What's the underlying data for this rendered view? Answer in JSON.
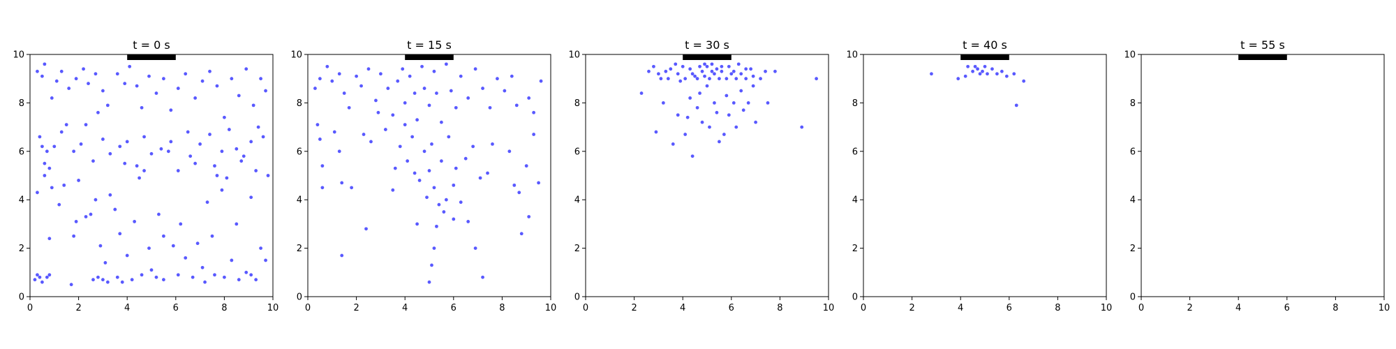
{
  "chart_data": [
    {
      "type": "scatter",
      "title": "t = 0 s",
      "xlim": [
        0,
        10
      ],
      "ylim": [
        0,
        10
      ],
      "xticks": [
        0,
        2,
        4,
        6,
        8,
        10
      ],
      "yticks": [
        0,
        2,
        4,
        6,
        8,
        10
      ],
      "grid": false,
      "exit_bar": {
        "x": [
          4,
          6
        ],
        "y": 10
      },
      "points": [
        [
          0.2,
          0.7
        ],
        [
          0.3,
          0.9
        ],
        [
          0.4,
          0.8
        ],
        [
          0.5,
          0.6
        ],
        [
          0.7,
          0.8
        ],
        [
          0.8,
          0.9
        ],
        [
          1.7,
          0.5
        ],
        [
          2.6,
          0.7
        ],
        [
          2.8,
          0.8
        ],
        [
          3.0,
          0.7
        ],
        [
          3.2,
          0.6
        ],
        [
          3.6,
          0.8
        ],
        [
          3.8,
          0.6
        ],
        [
          4.2,
          0.7
        ],
        [
          4.6,
          0.9
        ],
        [
          5.2,
          0.8
        ],
        [
          5.5,
          0.7
        ],
        [
          6.1,
          0.9
        ],
        [
          6.7,
          0.8
        ],
        [
          7.2,
          0.6
        ],
        [
          7.6,
          0.9
        ],
        [
          8.0,
          0.8
        ],
        [
          8.6,
          0.7
        ],
        [
          9.1,
          0.9
        ],
        [
          9.3,
          0.7
        ],
        [
          0.3,
          4.3
        ],
        [
          0.6,
          5.5
        ],
        [
          0.7,
          6.0
        ],
        [
          0.8,
          2.4
        ],
        [
          0.9,
          4.5
        ],
        [
          1.2,
          3.8
        ],
        [
          1.4,
          4.6
        ],
        [
          1.8,
          2.5
        ],
        [
          1.9,
          3.1
        ],
        [
          2.0,
          4.8
        ],
        [
          2.3,
          3.3
        ],
        [
          2.5,
          3.4
        ],
        [
          2.7,
          4.0
        ],
        [
          2.9,
          2.1
        ],
        [
          3.1,
          1.4
        ],
        [
          3.3,
          4.2
        ],
        [
          3.5,
          3.6
        ],
        [
          3.7,
          2.6
        ],
        [
          3.9,
          5.5
        ],
        [
          4.0,
          1.7
        ],
        [
          4.3,
          3.1
        ],
        [
          4.5,
          4.9
        ],
        [
          4.7,
          5.2
        ],
        [
          4.9,
          2.0
        ],
        [
          5.0,
          1.1
        ],
        [
          5.3,
          3.4
        ],
        [
          5.5,
          2.5
        ],
        [
          5.7,
          6.0
        ],
        [
          5.9,
          2.1
        ],
        [
          6.2,
          3.0
        ],
        [
          6.4,
          1.6
        ],
        [
          6.6,
          5.8
        ],
        [
          6.9,
          2.2
        ],
        [
          7.1,
          1.2
        ],
        [
          7.3,
          3.9
        ],
        [
          7.5,
          2.5
        ],
        [
          7.7,
          5.0
        ],
        [
          7.9,
          4.4
        ],
        [
          8.1,
          4.9
        ],
        [
          8.3,
          1.5
        ],
        [
          8.5,
          3.0
        ],
        [
          8.7,
          5.6
        ],
        [
          8.9,
          1.0
        ],
        [
          9.1,
          4.1
        ],
        [
          9.3,
          5.2
        ],
        [
          9.5,
          2.0
        ],
        [
          9.7,
          1.5
        ],
        [
          0.4,
          6.6
        ],
        [
          0.5,
          6.2
        ],
        [
          0.6,
          5.0
        ],
        [
          0.8,
          5.3
        ],
        [
          1.0,
          6.2
        ],
        [
          1.3,
          6.8
        ],
        [
          1.5,
          7.1
        ],
        [
          1.8,
          6.0
        ],
        [
          2.1,
          6.3
        ],
        [
          2.3,
          7.1
        ],
        [
          2.6,
          5.6
        ],
        [
          2.8,
          7.6
        ],
        [
          3.0,
          6.5
        ],
        [
          3.3,
          5.9
        ],
        [
          3.7,
          6.2
        ],
        [
          4.0,
          6.4
        ],
        [
          4.4,
          5.4
        ],
        [
          4.7,
          6.6
        ],
        [
          5.0,
          5.9
        ],
        [
          5.4,
          6.1
        ],
        [
          5.8,
          6.4
        ],
        [
          6.1,
          5.2
        ],
        [
          6.5,
          6.8
        ],
        [
          6.8,
          5.5
        ],
        [
          7.0,
          6.3
        ],
        [
          7.4,
          6.7
        ],
        [
          7.6,
          5.4
        ],
        [
          7.9,
          6.0
        ],
        [
          8.2,
          6.9
        ],
        [
          8.5,
          6.1
        ],
        [
          8.8,
          5.8
        ],
        [
          9.1,
          6.4
        ],
        [
          9.4,
          7.0
        ],
        [
          9.6,
          6.6
        ],
        [
          9.8,
          5.0
        ],
        [
          0.3,
          9.3
        ],
        [
          0.5,
          9.1
        ],
        [
          0.6,
          9.6
        ],
        [
          0.9,
          8.2
        ],
        [
          1.1,
          8.9
        ],
        [
          1.3,
          9.3
        ],
        [
          1.6,
          8.6
        ],
        [
          1.9,
          9.0
        ],
        [
          2.2,
          9.4
        ],
        [
          2.4,
          8.8
        ],
        [
          2.7,
          9.2
        ],
        [
          3.0,
          8.5
        ],
        [
          3.2,
          7.9
        ],
        [
          3.6,
          9.2
        ],
        [
          3.9,
          8.8
        ],
        [
          4.1,
          9.5
        ],
        [
          4.4,
          8.7
        ],
        [
          4.6,
          7.8
        ],
        [
          4.9,
          9.1
        ],
        [
          5.2,
          8.4
        ],
        [
          5.5,
          9.0
        ],
        [
          5.8,
          7.7
        ],
        [
          6.1,
          8.6
        ],
        [
          6.4,
          9.2
        ],
        [
          6.8,
          8.2
        ],
        [
          7.1,
          8.9
        ],
        [
          7.4,
          9.3
        ],
        [
          7.7,
          8.7
        ],
        [
          8.0,
          7.4
        ],
        [
          8.3,
          9.0
        ],
        [
          8.6,
          8.3
        ],
        [
          8.9,
          9.4
        ],
        [
          9.2,
          7.9
        ],
        [
          9.5,
          9.0
        ],
        [
          9.7,
          8.5
        ]
      ]
    },
    {
      "type": "scatter",
      "title": "t = 15 s",
      "xlim": [
        0,
        10
      ],
      "ylim": [
        0,
        10
      ],
      "xticks": [
        0,
        2,
        4,
        6,
        8,
        10
      ],
      "yticks": [
        0,
        2,
        4,
        6,
        8,
        10
      ],
      "grid": false,
      "exit_bar": {
        "x": [
          4,
          6
        ],
        "y": 10
      },
      "points": [
        [
          1.4,
          1.7
        ],
        [
          2.4,
          2.8
        ],
        [
          4.5,
          3.0
        ],
        [
          5.0,
          0.6
        ],
        [
          5.1,
          1.3
        ],
        [
          5.2,
          2.0
        ],
        [
          5.3,
          2.9
        ],
        [
          5.6,
          3.5
        ],
        [
          6.0,
          3.2
        ],
        [
          6.6,
          3.1
        ],
        [
          6.9,
          2.0
        ],
        [
          7.2,
          0.8
        ],
        [
          8.8,
          2.6
        ],
        [
          9.1,
          3.3
        ],
        [
          0.3,
          8.6
        ],
        [
          0.4,
          7.1
        ],
        [
          0.5,
          6.5
        ],
        [
          0.6,
          5.4
        ],
        [
          0.6,
          4.5
        ],
        [
          1.1,
          6.8
        ],
        [
          1.3,
          6.0
        ],
        [
          1.4,
          4.7
        ],
        [
          1.8,
          4.5
        ],
        [
          2.3,
          6.7
        ],
        [
          2.6,
          6.4
        ],
        [
          2.9,
          7.6
        ],
        [
          3.2,
          6.9
        ],
        [
          3.5,
          4.4
        ],
        [
          3.6,
          5.3
        ],
        [
          3.8,
          6.2
        ],
        [
          4.0,
          7.1
        ],
        [
          4.1,
          5.6
        ],
        [
          4.3,
          6.6
        ],
        [
          4.4,
          5.1
        ],
        [
          4.6,
          4.8
        ],
        [
          4.8,
          6.0
        ],
        [
          4.9,
          4.1
        ],
        [
          5.0,
          5.2
        ],
        [
          5.1,
          6.3
        ],
        [
          5.2,
          4.5
        ],
        [
          5.4,
          3.8
        ],
        [
          5.5,
          5.6
        ],
        [
          5.7,
          4.0
        ],
        [
          5.8,
          6.6
        ],
        [
          6.0,
          4.6
        ],
        [
          6.1,
          5.3
        ],
        [
          6.3,
          3.9
        ],
        [
          6.5,
          5.7
        ],
        [
          6.8,
          6.2
        ],
        [
          7.1,
          4.9
        ],
        [
          7.4,
          5.1
        ],
        [
          7.6,
          6.3
        ],
        [
          8.3,
          6.0
        ],
        [
          8.5,
          4.6
        ],
        [
          8.7,
          4.3
        ],
        [
          9.0,
          5.4
        ],
        [
          9.3,
          6.7
        ],
        [
          9.5,
          4.7
        ],
        [
          0.5,
          9.0
        ],
        [
          0.8,
          9.5
        ],
        [
          1.0,
          8.9
        ],
        [
          1.3,
          9.2
        ],
        [
          1.5,
          8.4
        ],
        [
          1.7,
          7.8
        ],
        [
          2.0,
          9.1
        ],
        [
          2.2,
          8.7
        ],
        [
          2.5,
          9.4
        ],
        [
          2.8,
          8.1
        ],
        [
          3.0,
          9.2
        ],
        [
          3.3,
          8.6
        ],
        [
          3.5,
          7.5
        ],
        [
          3.7,
          8.9
        ],
        [
          3.9,
          9.4
        ],
        [
          4.0,
          8.0
        ],
        [
          4.2,
          9.1
        ],
        [
          4.4,
          8.4
        ],
        [
          4.5,
          7.3
        ],
        [
          4.7,
          9.5
        ],
        [
          4.8,
          8.6
        ],
        [
          5.0,
          7.9
        ],
        [
          5.2,
          9.3
        ],
        [
          5.3,
          8.4
        ],
        [
          5.5,
          7.2
        ],
        [
          5.7,
          9.6
        ],
        [
          5.9,
          8.5
        ],
        [
          6.1,
          7.8
        ],
        [
          6.3,
          9.1
        ],
        [
          6.6,
          8.2
        ],
        [
          6.9,
          9.4
        ],
        [
          7.2,
          8.6
        ],
        [
          7.5,
          7.8
        ],
        [
          7.8,
          9.0
        ],
        [
          8.1,
          8.5
        ],
        [
          8.4,
          9.1
        ],
        [
          8.6,
          7.9
        ],
        [
          9.1,
          8.2
        ],
        [
          9.3,
          7.6
        ],
        [
          9.6,
          8.9
        ]
      ]
    },
    {
      "type": "scatter",
      "title": "t = 30 s",
      "xlim": [
        0,
        10
      ],
      "ylim": [
        0,
        10
      ],
      "xticks": [
        0,
        2,
        4,
        6,
        8,
        10
      ],
      "yticks": [
        0,
        2,
        4,
        6,
        8,
        10
      ],
      "grid": false,
      "exit_bar": {
        "x": [
          4,
          6
        ],
        "y": 10
      },
      "points": [
        [
          2.3,
          8.4
        ],
        [
          2.6,
          9.3
        ],
        [
          2.9,
          6.8
        ],
        [
          3.1,
          9.0
        ],
        [
          3.2,
          8.0
        ],
        [
          3.5,
          9.4
        ],
        [
          3.6,
          6.3
        ],
        [
          3.8,
          7.5
        ],
        [
          3.9,
          8.9
        ],
        [
          4.0,
          9.5
        ],
        [
          4.1,
          6.7
        ],
        [
          4.2,
          7.4
        ],
        [
          4.3,
          8.2
        ],
        [
          4.4,
          5.8
        ],
        [
          4.5,
          9.1
        ],
        [
          4.6,
          7.8
        ],
        [
          4.7,
          8.4
        ],
        [
          4.8,
          7.2
        ],
        [
          4.9,
          9.6
        ],
        [
          5.0,
          8.7
        ],
        [
          5.1,
          7.0
        ],
        [
          5.2,
          9.3
        ],
        [
          5.3,
          8.0
        ],
        [
          5.4,
          7.6
        ],
        [
          5.5,
          6.4
        ],
        [
          5.6,
          9.5
        ],
        [
          5.7,
          6.7
        ],
        [
          5.8,
          8.3
        ],
        [
          5.9,
          7.5
        ],
        [
          6.0,
          9.2
        ],
        [
          6.1,
          8.0
        ],
        [
          6.2,
          7.0
        ],
        [
          6.3,
          9.6
        ],
        [
          6.4,
          8.5
        ],
        [
          6.5,
          7.7
        ],
        [
          6.6,
          9.0
        ],
        [
          6.7,
          8.0
        ],
        [
          6.8,
          9.4
        ],
        [
          6.9,
          8.7
        ],
        [
          7.0,
          7.2
        ],
        [
          7.2,
          9.0
        ],
        [
          7.5,
          8.0
        ],
        [
          7.8,
          9.3
        ],
        [
          8.9,
          7.0
        ],
        [
          9.5,
          9.0
        ],
        [
          2.8,
          9.5
        ],
        [
          3.0,
          9.2
        ],
        [
          3.3,
          9.3
        ],
        [
          3.4,
          9.0
        ],
        [
          3.7,
          9.6
        ],
        [
          3.8,
          9.2
        ],
        [
          4.1,
          9.0
        ],
        [
          4.3,
          9.4
        ],
        [
          4.4,
          9.2
        ],
        [
          4.6,
          9.0
        ],
        [
          4.7,
          9.5
        ],
        [
          4.8,
          9.3
        ],
        [
          4.9,
          9.1
        ],
        [
          5.0,
          9.5
        ],
        [
          5.1,
          9.0
        ],
        [
          5.2,
          9.6
        ],
        [
          5.3,
          9.2
        ],
        [
          5.4,
          9.4
        ],
        [
          5.5,
          9.0
        ],
        [
          5.6,
          9.3
        ],
        [
          5.8,
          9.0
        ],
        [
          5.9,
          9.5
        ],
        [
          6.1,
          9.3
        ],
        [
          6.2,
          9.0
        ],
        [
          6.4,
          9.2
        ],
        [
          6.6,
          9.4
        ],
        [
          6.9,
          9.1
        ],
        [
          7.4,
          9.3
        ]
      ]
    },
    {
      "type": "scatter",
      "title": "t = 40 s",
      "xlim": [
        0,
        10
      ],
      "ylim": [
        0,
        10
      ],
      "xticks": [
        0,
        2,
        4,
        6,
        8,
        10
      ],
      "yticks": [
        0,
        2,
        4,
        6,
        8,
        10
      ],
      "grid": false,
      "exit_bar": {
        "x": [
          4,
          6
        ],
        "y": 10
      },
      "points": [
        [
          2.8,
          9.2
        ],
        [
          3.9,
          9.0
        ],
        [
          4.2,
          9.1
        ],
        [
          4.3,
          9.5
        ],
        [
          4.5,
          9.3
        ],
        [
          4.6,
          9.5
        ],
        [
          4.7,
          9.4
        ],
        [
          4.8,
          9.2
        ],
        [
          4.9,
          9.3
        ],
        [
          5.0,
          9.5
        ],
        [
          5.1,
          9.2
        ],
        [
          5.3,
          9.4
        ],
        [
          5.5,
          9.2
        ],
        [
          5.7,
          9.3
        ],
        [
          5.9,
          9.1
        ],
        [
          6.2,
          9.2
        ],
        [
          6.3,
          7.9
        ],
        [
          6.6,
          8.9
        ]
      ]
    },
    {
      "type": "scatter",
      "title": "t = 55 s",
      "xlim": [
        0,
        10
      ],
      "ylim": [
        0,
        10
      ],
      "xticks": [
        0,
        2,
        4,
        6,
        8,
        10
      ],
      "yticks": [
        0,
        2,
        4,
        6,
        8,
        10
      ],
      "grid": false,
      "exit_bar": {
        "x": [
          4,
          6
        ],
        "y": 10
      },
      "points": []
    }
  ],
  "style": {
    "point_color": "#0000ff",
    "point_opacity": 0.65,
    "bar_color": "#000000",
    "axis_color": "#000000"
  }
}
